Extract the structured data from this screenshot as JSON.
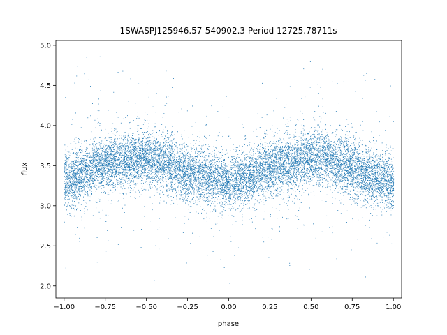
{
  "chart_data": {
    "type": "scatter",
    "title": "1SWASPJ125946.57-540902.3 Period 12725.78711s",
    "xlabel": "phase",
    "ylabel": "flux",
    "xlim": [
      -1.05,
      1.05
    ],
    "ylim": [
      1.85,
      5.06
    ],
    "xticks": [
      -1.0,
      -0.75,
      -0.5,
      -0.25,
      0.0,
      0.25,
      0.5,
      0.75,
      1.0
    ],
    "xtick_labels": [
      "−1.00",
      "−0.75",
      "−0.50",
      "−0.25",
      "0.00",
      "0.25",
      "0.50",
      "0.75",
      "1.00"
    ],
    "yticks": [
      2.0,
      2.5,
      3.0,
      3.5,
      4.0,
      4.5,
      5.0
    ],
    "ytick_labels": [
      "2.0",
      "2.5",
      "3.0",
      "3.5",
      "4.0",
      "4.5",
      "5.0"
    ],
    "grid": false,
    "point_color": "#1f77b4",
    "series": [
      {
        "x_range": [
          -1.0,
          1.0
        ],
        "profile_phase": [
          -1.0,
          -0.9,
          -0.8,
          -0.7,
          -0.6,
          -0.5,
          -0.4,
          -0.3,
          -0.2,
          -0.1,
          0.0,
          0.1,
          0.2,
          0.3,
          0.4,
          0.5,
          0.6,
          0.7,
          0.8,
          0.9,
          1.0
        ],
        "profile_flux": [
          3.3,
          3.4,
          3.5,
          3.55,
          3.58,
          3.6,
          3.55,
          3.45,
          3.4,
          3.35,
          3.28,
          3.35,
          3.45,
          3.5,
          3.55,
          3.6,
          3.58,
          3.52,
          3.42,
          3.35,
          3.28
        ],
        "scatter_sigma": 0.17
      }
    ]
  }
}
